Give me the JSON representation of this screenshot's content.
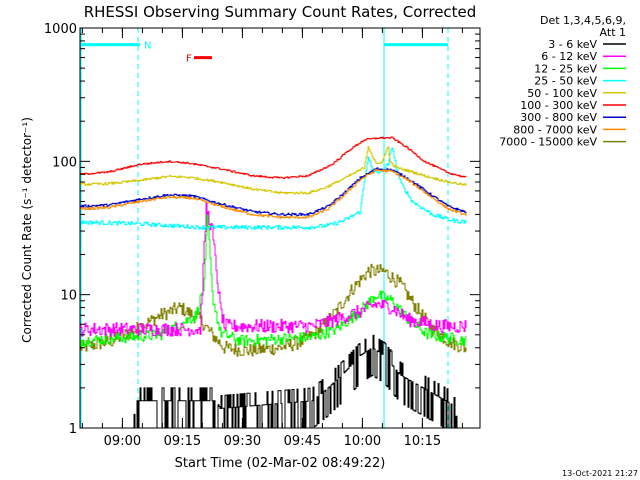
{
  "chart_data": {
    "type": "line",
    "title": "RHESSI Observing Summary Count Rates, Corrected",
    "ylabel": "Corrected Count Rate (s⁻¹ detector⁻¹)",
    "xlabel": "Start Time (02-Mar-02 08:49:22)",
    "y_scale": "log",
    "ylim": [
      1,
      1000
    ],
    "x_unit": "minutes after 08:49:22",
    "xlim": [
      0,
      100
    ],
    "x_ticks": [
      {
        "t": 10.6,
        "label": "09:00"
      },
      {
        "t": 25.6,
        "label": "09:15"
      },
      {
        "t": 40.6,
        "label": "09:30"
      },
      {
        "t": 55.6,
        "label": "09:45"
      },
      {
        "t": 70.6,
        "label": "10:00"
      },
      {
        "t": 85.6,
        "label": "10:15"
      }
    ],
    "y_ticks": [
      {
        "v": 1,
        "label": "1"
      },
      {
        "v": 10,
        "label": "10"
      },
      {
        "v": 100,
        "label": "100"
      },
      {
        "v": 1000,
        "label": "1000"
      }
    ],
    "legend_header": [
      "Det 1,3,4,5,6,9,",
      "Att 1"
    ],
    "legend_placement": "right, outside plot",
    "series": [
      {
        "name": "3 - 6 keV",
        "color": "#000000",
        "t": [
          0,
          13,
          14,
          34,
          35,
          58,
          62,
          66,
          70,
          73,
          76,
          80,
          93,
          95,
          99
        ],
        "values": [
          1,
          1,
          1.6,
          1.6,
          1.4,
          1.6,
          2.0,
          2.6,
          3.5,
          4.0,
          3.5,
          2.5,
          1.5,
          1.0,
          1.0
        ]
      },
      {
        "name": "6 - 12 keV",
        "color": "#ff00ff",
        "t": [
          0,
          30,
          31.5,
          33,
          35,
          36,
          50,
          58,
          64,
          70,
          74,
          78,
          82,
          90,
          97
        ],
        "values": [
          5.5,
          5.5,
          45,
          30,
          8,
          5.8,
          5.8,
          5.8,
          6.5,
          7.5,
          8.5,
          8.0,
          6.5,
          5.8,
          5.8
        ]
      },
      {
        "name": "12 - 25 keV",
        "color": "#00ff00",
        "t": [
          0,
          20,
          25,
          29,
          31,
          31.8,
          33,
          35,
          40,
          58,
          64,
          70,
          74,
          78,
          82,
          87,
          97
        ],
        "values": [
          4.5,
          5.0,
          6.0,
          7.0,
          12,
          40,
          10,
          5.2,
          4.5,
          4.8,
          5.5,
          7.5,
          10,
          9,
          6.5,
          5.0,
          4.5
        ]
      },
      {
        "name": "25 - 50 keV",
        "color": "#00ffff",
        "t": [
          0,
          15,
          30,
          45,
          57,
          62,
          66,
          70,
          71,
          72,
          73,
          75,
          77,
          78,
          79,
          80,
          83,
          88,
          93,
          97
        ],
        "values": [
          35,
          34,
          32,
          32,
          32,
          33,
          36,
          42,
          70,
          110,
          85,
          82,
          95,
          130,
          90,
          70,
          50,
          40,
          36,
          35
        ]
      },
      {
        "name": "50 - 100 keV",
        "color": "#d4c800",
        "t": [
          0,
          7,
          15,
          22,
          27,
          35,
          43,
          50,
          57,
          61,
          65,
          69,
          71,
          72,
          73,
          74,
          75.5,
          77,
          77.5,
          78.5,
          80,
          82,
          86,
          92,
          97
        ],
        "values": [
          67,
          68,
          72,
          77,
          76,
          70,
          62,
          58,
          58,
          63,
          72,
          83,
          90,
          130,
          110,
          95,
          100,
          130,
          98,
          92,
          88,
          85,
          78,
          70,
          66
        ]
      },
      {
        "name": "100 - 300 keV",
        "color": "#ff0000",
        "t": [
          0,
          7,
          15,
          22,
          27,
          35,
          43,
          50,
          57,
          63,
          67,
          71,
          75,
          78,
          82,
          86,
          92,
          97
        ],
        "values": [
          80,
          83,
          95,
          100,
          97,
          88,
          78,
          75,
          78,
          95,
          120,
          145,
          150,
          150,
          125,
          100,
          82,
          75
        ]
      },
      {
        "name": "300 - 800 keV",
        "color": "#0000cc",
        "t": [
          0,
          7,
          15,
          22,
          28,
          35,
          43,
          50,
          57,
          62,
          66,
          70,
          74,
          78,
          82,
          87,
          92,
          97
        ],
        "values": [
          46,
          47,
          52,
          56,
          55,
          48,
          42,
          40,
          40,
          46,
          58,
          75,
          88,
          86,
          74,
          58,
          46,
          41
        ]
      },
      {
        "name": "800 - 7000 keV",
        "color": "#ff8c00",
        "t": [
          0,
          7,
          15,
          22,
          28,
          35,
          43,
          50,
          57,
          62,
          66,
          70,
          74,
          78,
          82,
          87,
          92,
          97
        ],
        "values": [
          44,
          45,
          50,
          54,
          53,
          46,
          40,
          38,
          38,
          44,
          56,
          73,
          86,
          84,
          72,
          56,
          44,
          39
        ]
      },
      {
        "name": "7000 - 15000 keV",
        "color": "#808000",
        "t": [
          0,
          8,
          14,
          20,
          25,
          30,
          33,
          36,
          42,
          50,
          56,
          60,
          64,
          68,
          72,
          76,
          80,
          84,
          88,
          92,
          96
        ],
        "values": [
          4.0,
          4.5,
          5.5,
          7.0,
          8.0,
          6.5,
          5.0,
          4.0,
          3.8,
          4.0,
          4.5,
          5.5,
          7.5,
          11,
          15,
          15,
          12,
          8,
          5.5,
          4.5,
          4.0
        ]
      }
    ],
    "band_lines": [
      {
        "t0": 0,
        "t1": 15,
        "value": 750
      },
      {
        "t0": 76,
        "t1": 92,
        "value": 750
      }
    ],
    "band_labels": [
      {
        "label": "N",
        "t": 16,
        "value": 750,
        "color": "#00ffff"
      },
      {
        "label": "F",
        "t": 26.5,
        "value": 600,
        "color": "#ff0000"
      }
    ],
    "flare_bar": {
      "t0": 28.5,
      "t1": 33,
      "value": 600
    },
    "time_markers_dashed": [
      14.5,
      92
    ],
    "time_markers_solid": [
      0,
      76
    ],
    "footer_date": "13-Oct-2021 21:27"
  }
}
